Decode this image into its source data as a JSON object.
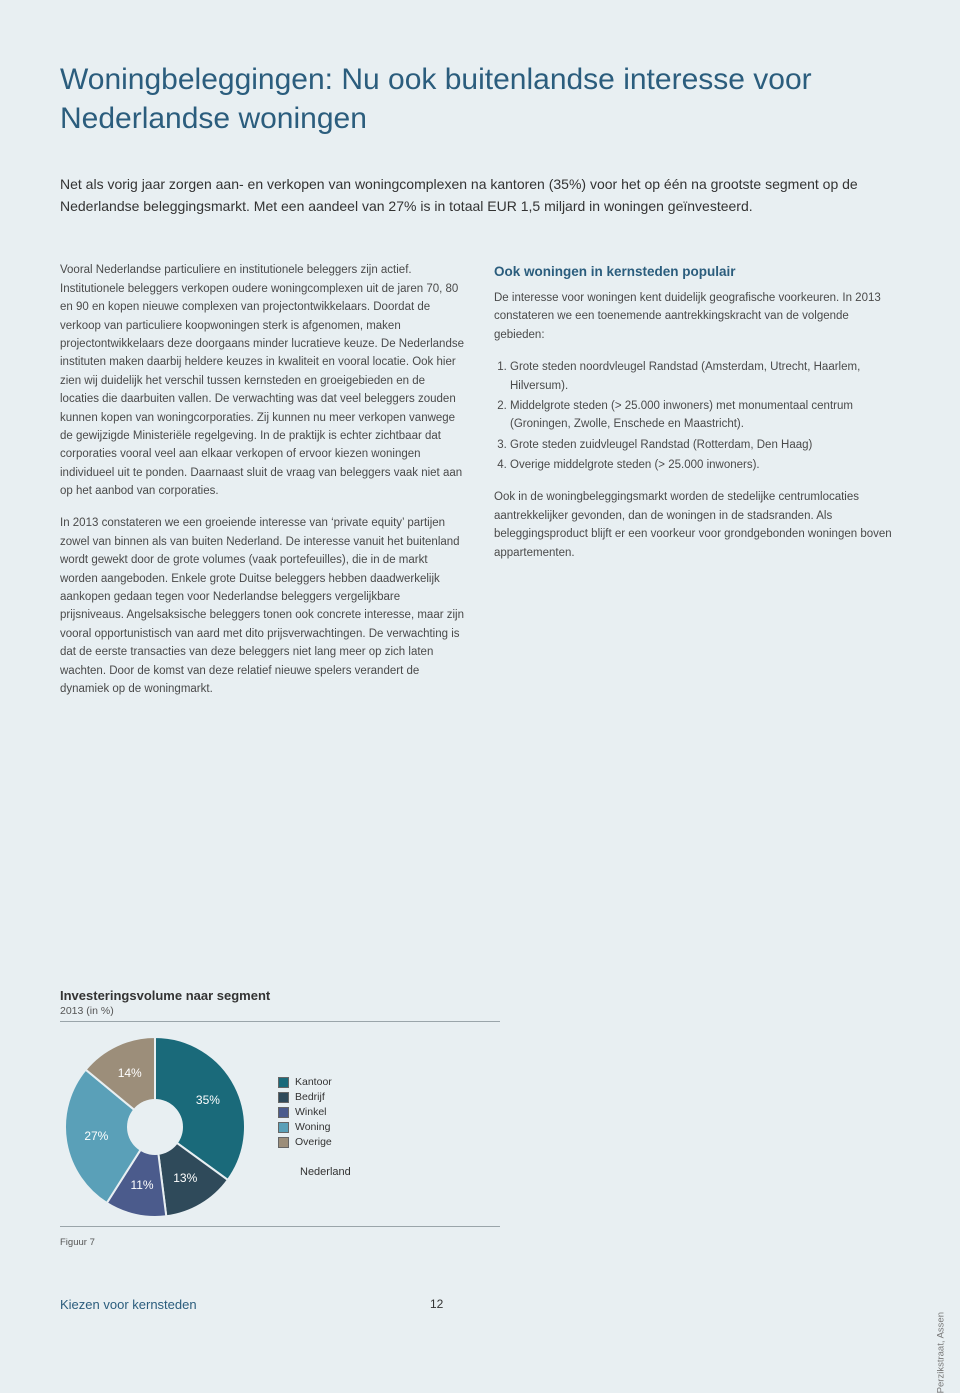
{
  "title": "Woningbeleggingen: Nu ook buitenlandse interesse voor Nederlandse woningen",
  "intro": "Net als vorig jaar zorgen aan- en verkopen van woningcomplexen na kantoren (35%) voor het op één na grootste segment op de Nederlandse beleggingsmarkt. Met een aandeel van 27% is in totaal EUR 1,5 miljard in woningen geïnvesteerd.",
  "left": {
    "p1": "Vooral Nederlandse particuliere en institutionele beleggers zijn actief. Institutionele beleggers verkopen oudere woningcomplexen uit de jaren 70, 80 en 90 en kopen nieuwe complexen van projectontwikkelaars. Doordat de verkoop van particuliere koopwoningen sterk is afgenomen, maken projectontwikkelaars deze doorgaans minder lucratieve keuze. De Nederlandse instituten maken daarbij heldere keuzes in kwaliteit en vooral locatie. Ook hier zien wij duidelijk het verschil tussen kernsteden en groeigebieden en de locaties die daarbuiten vallen. De verwachting was dat veel beleggers zouden kunnen kopen van woningcorporaties. Zij kunnen nu meer verkopen vanwege de gewijzigde Ministeriële regelgeving. In de praktijk is echter zichtbaar dat corporaties vooral veel aan elkaar verkopen of ervoor kiezen woningen individueel uit te ponden. Daarnaast sluit de vraag van beleggers vaak niet aan op het aanbod van corporaties.",
    "p2": "In 2013 constateren we een groeiende interesse van ‘private equity’ partijen zowel van binnen als van buiten Nederland. De interesse vanuit het buitenland wordt gewekt door de grote volumes (vaak portefeuilles), die in de markt worden aangeboden. Enkele grote Duitse beleggers hebben daadwerkelijk aankopen gedaan tegen voor Nederlandse beleggers vergelijkbare prijsniveaus. Angelsaksische beleggers tonen ook concrete interesse, maar zijn vooral opportunistisch van aard met dito prijsverwachtingen. De verwachting is dat de eerste transacties van deze beleggers niet lang meer op zich laten wachten. Door de komst van deze relatief nieuwe spelers verandert de dynamiek op de woningmarkt."
  },
  "right": {
    "heading": "Ook woningen in kernsteden populair",
    "p1": "De interesse voor woningen kent duidelijk geografische voorkeuren. In 2013 constateren we een toenemende aantrekkingskracht van de volgende gebieden:",
    "items": [
      "Grote steden noordvleugel Randstad (Amsterdam, Utrecht, Haarlem, Hilversum).",
      "Middelgrote steden (> 25.000 inwoners) met monumentaal centrum (Groningen, Zwolle, Enschede en Maastricht).",
      "Grote steden zuidvleugel Randstad (Rotterdam, Den Haag)",
      "Overige middelgrote steden (> 25.000 inwoners)."
    ],
    "p2": "Ook in de woningbeleggingsmarkt worden de stedelijke centrumlocaties aantrekkelijker gevonden, dan de woningen in de stadsranden. Als beleggingsproduct blijft er een voorkeur voor grondgebonden woningen boven appartementen."
  },
  "chart": {
    "title": "Investeringsvolume naar segment",
    "subtitle": "2013 (in %)",
    "caption": "Figuur 7",
    "country": "Nederland",
    "type": "pie",
    "inner_hole_color": "#e8eff2",
    "stroke_color": "#e8eff2",
    "slices": [
      {
        "label": "Kantoor",
        "value": 35,
        "pct_text": "35%",
        "color": "#1a6a7a"
      },
      {
        "label": "Bedrijf",
        "value": 13,
        "pct_text": "13%",
        "color": "#2f4a5a"
      },
      {
        "label": "Winkel",
        "value": 11,
        "pct_text": "11%",
        "color": "#4b5b8c"
      },
      {
        "label": "Woning",
        "value": 27,
        "pct_text": "27%",
        "color": "#5aa0b8"
      },
      {
        "label": "Overige",
        "value": 14,
        "pct_text": "14%",
        "color": "#9c8e7a"
      }
    ],
    "legend_order": [
      0,
      1,
      2,
      3,
      4
    ]
  },
  "footer": {
    "doc_title": "Kiezen voor kernsteden",
    "page": "12"
  },
  "side_caption": "Perzikstraat, Assen"
}
